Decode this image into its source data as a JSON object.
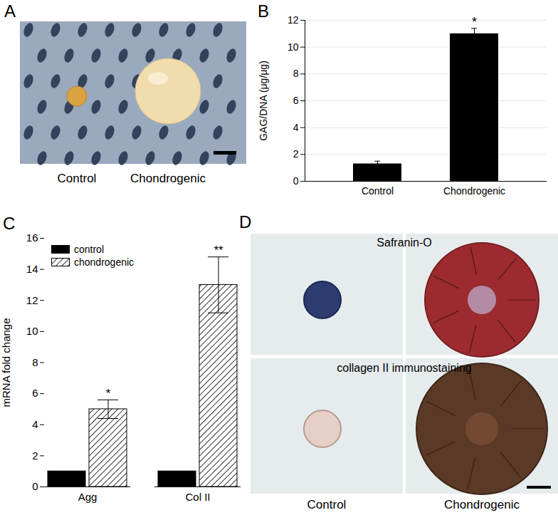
{
  "figure_panels": [
    {
      "label": "A",
      "captions": [
        "Control",
        "Chondrogenic"
      ]
    },
    {
      "label": "D",
      "row_titles": [
        "Safranin-O",
        "collagen II immunostaining"
      ],
      "captions": [
        "Control",
        "Chondrogenic"
      ]
    }
  ],
  "chart_data": [
    {
      "type": "bar",
      "title": "B",
      "categories": [
        "Control",
        "Chondrogenic"
      ],
      "values": [
        1.3,
        11.0
      ],
      "errors": [
        0.2,
        0.4
      ],
      "annotations": [
        null,
        "*"
      ],
      "color": "#000000",
      "ylabel": "GAG/DNA (μg/μg)",
      "ylim": [
        0,
        12
      ],
      "yticks": [
        0,
        2,
        4,
        6,
        8,
        10,
        12
      ],
      "grid": true
    },
    {
      "type": "bar",
      "title": "C",
      "categories": [
        "Agg",
        "Col II"
      ],
      "series": [
        {
          "name": "control",
          "color": "#000000",
          "values": [
            1,
            1
          ]
        },
        {
          "name": "chondrogenic",
          "color": "#ffffff",
          "values": [
            5.0,
            13.0
          ],
          "errors": [
            0.6,
            1.8
          ],
          "annotations": [
            "*",
            "**"
          ]
        }
      ],
      "ylabel": "mRNA fold change",
      "ylim": [
        0,
        16
      ],
      "yticks": [
        0,
        2,
        4,
        6,
        8,
        10,
        12,
        14,
        16
      ],
      "legend": "top-left",
      "grid": false
    }
  ]
}
